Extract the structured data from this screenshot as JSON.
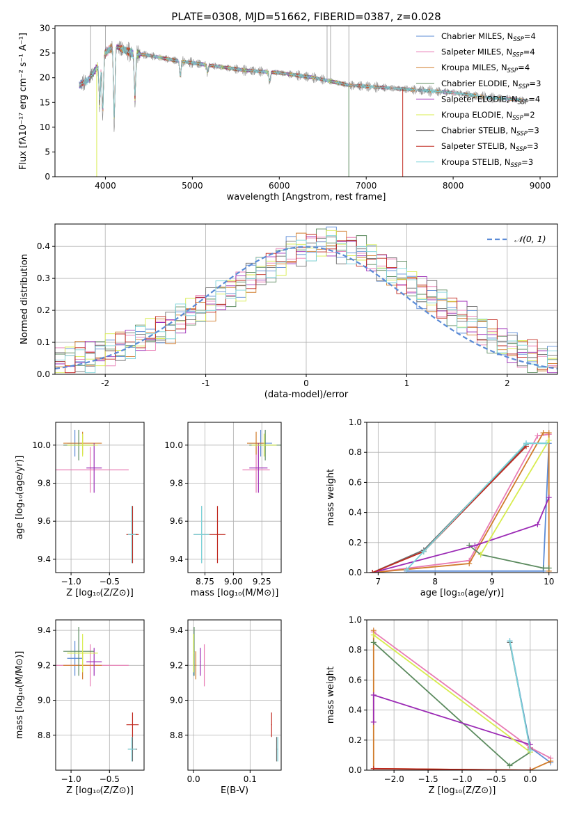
{
  "figure_title": "PLATE=0308, MJD=51662, FIBERID=0387, z=0.028",
  "colors": {
    "chabrier_miles": "#5B8BD6",
    "salpeter_miles": "#E87BB4",
    "kroupa_miles": "#D07B2A",
    "chabrier_elodie": "#5B8A5E",
    "salpeter_elodie": "#9B2AB5",
    "kroupa_elodie": "#D8EC4E",
    "chabrier_stelib": "#6E6E6E",
    "salpeter_stelib": "#C0281E",
    "kroupa_stelib": "#7CD3D9",
    "gaussian": "#5B8BD6"
  },
  "chart_data": [
    {
      "id": "spectrum",
      "type": "line",
      "title": "PLATE=0308, MJD=51662, FIBERID=0387, z=0.028",
      "xlabel": "wavelength [Angstrom, rest frame]",
      "ylabel": "Flux [fλ10⁻¹⁷ erg cm⁻² s⁻¹ A⁻¹]",
      "xlim": [
        3420,
        9200
      ],
      "ylim": [
        0,
        30.5
      ],
      "xticks": [
        4000,
        5000,
        6000,
        7000,
        8000,
        9000
      ],
      "yticks": [
        0,
        5,
        10,
        15,
        20,
        25,
        30
      ],
      "grid": false,
      "legend_position": "top-right",
      "legend": [
        {
          "key": "chabrier_miles",
          "prefix": "Chabrier MILES, N",
          "n": "4"
        },
        {
          "key": "salpeter_miles",
          "prefix": "Salpeter MILES, N",
          "n": "4"
        },
        {
          "key": "kroupa_miles",
          "prefix": "Kroupa MILES, N",
          "n": "4"
        },
        {
          "key": "chabrier_elodie",
          "prefix": "Chabrier ELODIE, N",
          "n": "3"
        },
        {
          "key": "salpeter_elodie",
          "prefix": "Salpeter ELODIE, N",
          "n": "4"
        },
        {
          "key": "kroupa_elodie",
          "prefix": "Kroupa ELODIE, N",
          "n": "2"
        },
        {
          "key": "chabrier_stelib",
          "prefix": "Chabrier STELIB, N",
          "n": "3"
        },
        {
          "key": "salpeter_stelib",
          "prefix": "Salpeter STELIB, N",
          "n": "3"
        },
        {
          "key": "kroupa_stelib",
          "prefix": "Kroupa STELIB, N",
          "n": "3"
        }
      ],
      "legend_sub": "SSP",
      "continuum": [
        [
          3700,
          18.5
        ],
        [
          3800,
          19.5
        ],
        [
          3900,
          22
        ],
        [
          4000,
          25
        ],
        [
          4100,
          26.5
        ],
        [
          4300,
          25
        ],
        [
          4500,
          24.5
        ],
        [
          4800,
          23.5
        ],
        [
          5200,
          22.5
        ],
        [
          5600,
          21.5
        ],
        [
          6000,
          21
        ],
        [
          6400,
          20
        ],
        [
          6800,
          18.5
        ],
        [
          7200,
          18
        ],
        [
          7600,
          17.5
        ],
        [
          8000,
          17
        ],
        [
          8400,
          16
        ],
        [
          8800,
          15.5
        ]
      ],
      "absorption_lines": [
        [
          3934,
          14
        ],
        [
          3969,
          12
        ],
        [
          4102,
          10
        ],
        [
          4340,
          15
        ],
        [
          4861,
          20
        ],
        [
          5175,
          21
        ],
        [
          5890,
          19
        ]
      ],
      "data_spikes": [
        [
          3830,
          30.5
        ],
        [
          4000,
          30.5
        ],
        [
          6550,
          30.5
        ],
        [
          6590,
          30.5
        ],
        [
          6800,
          30.5
        ]
      ],
      "model_dropouts": [
        {
          "key": "kroupa_elodie",
          "x": 3900,
          "y": 0
        },
        {
          "key": "chabrier_elodie",
          "x": 6800,
          "y": 0
        },
        {
          "key": "salpeter_stelib",
          "x": 7420,
          "y": 0
        }
      ],
      "model_ranges": {
        "chabrier_miles": [
          3700,
          8850
        ],
        "salpeter_miles": [
          3700,
          8850
        ],
        "kroupa_miles": [
          3700,
          8850
        ],
        "chabrier_elodie": [
          3700,
          6800
        ],
        "salpeter_elodie": [
          3700,
          6800
        ],
        "kroupa_elodie": [
          3900,
          6800
        ],
        "chabrier_stelib": [
          3700,
          8850
        ],
        "salpeter_stelib": [
          3700,
          7420
        ],
        "kroupa_stelib": [
          3700,
          8850
        ]
      }
    },
    {
      "id": "residuals",
      "type": "histogram",
      "xlabel": "(data-model)/error",
      "ylabel": "Normed distribution",
      "xlim": [
        -2.5,
        2.5
      ],
      "ylim": [
        0,
        0.47
      ],
      "xticks": [
        -2,
        -1,
        0,
        1,
        2
      ],
      "yticks": [
        0.0,
        0.1,
        0.2,
        0.3,
        0.4
      ],
      "grid": true,
      "legend_position": "top-right",
      "legend_label": "𝒩(0, 1)",
      "bin_edges_start": -2.5,
      "bin_width": 0.1,
      "series_keys": [
        "chabrier_miles",
        "salpeter_miles",
        "kroupa_miles",
        "chabrier_elodie",
        "salpeter_elodie",
        "kroupa_elodie",
        "chabrier_stelib",
        "salpeter_stelib",
        "kroupa_stelib"
      ],
      "envelope": [
        0.04,
        0.045,
        0.05,
        0.055,
        0.065,
        0.075,
        0.085,
        0.1,
        0.11,
        0.12,
        0.14,
        0.15,
        0.17,
        0.19,
        0.21,
        0.22,
        0.24,
        0.26,
        0.28,
        0.3,
        0.32,
        0.34,
        0.36,
        0.38,
        0.39,
        0.4,
        0.41,
        0.41,
        0.4,
        0.39,
        0.38,
        0.36,
        0.34,
        0.32,
        0.3,
        0.28,
        0.26,
        0.24,
        0.22,
        0.2,
        0.18,
        0.16,
        0.14,
        0.12,
        0.1,
        0.08,
        0.07,
        0.055,
        0.045,
        0.035
      ]
    },
    {
      "id": "age_vs_Z",
      "type": "scatter",
      "xlabel": "Z [log₁₀(Z/Z⊙)]",
      "ylabel": "age  [log₁₀(age/yr)]",
      "xlim": [
        -1.2,
        -0.05
      ],
      "ylim": [
        9.33,
        10.12
      ],
      "xticks": [
        -1.0,
        -0.5
      ],
      "xticklabels": [
        "−1.0",
        "−0.5"
      ],
      "yticks": [
        9.4,
        9.6,
        9.8,
        10.0
      ],
      "yticklabels": [
        "9.4",
        "9.6",
        "9.8",
        "10.0"
      ],
      "grid": true
    },
    {
      "id": "age_vs_mass",
      "type": "scatter",
      "xlabel": "mass [log₁₀(M/M⊙)]",
      "xlim": [
        8.6,
        9.42
      ],
      "ylim": [
        9.33,
        10.12
      ],
      "xticks": [
        8.75,
        9.0,
        9.25
      ],
      "xticklabels": [
        "8.75",
        "9.00",
        "9.25"
      ],
      "yticks": [
        9.4,
        9.6,
        9.8,
        10.0
      ],
      "yticklabels": [
        "9.4",
        "9.6",
        "9.8",
        "10.0"
      ],
      "grid": true
    },
    {
      "id": "weight_vs_age",
      "type": "line",
      "xlabel": "age  [log₁₀(age/yr)]",
      "ylabel": "mass weight",
      "xlim": [
        6.8,
        10.15
      ],
      "ylim": [
        0,
        1.0
      ],
      "xticks": [
        7,
        8,
        9,
        10
      ],
      "xticklabels": [
        "7",
        "8",
        "9",
        "10"
      ],
      "yticks": [
        0.0,
        0.2,
        0.4,
        0.6,
        0.8,
        1.0
      ],
      "yticklabels": [
        "0.0",
        "0.2",
        "0.4",
        "0.6",
        "0.8",
        "1.0"
      ],
      "grid": true
    },
    {
      "id": "mass_vs_Z",
      "type": "scatter",
      "xlabel": "Z [log₁₀(Z/Z⊙)]",
      "ylabel": "mass [log₁₀(M/M⊙)]",
      "xlim": [
        -1.2,
        -0.05
      ],
      "ylim": [
        8.6,
        9.46
      ],
      "xticks": [
        -1.0,
        -0.5
      ],
      "xticklabels": [
        "−1.0",
        "−0.5"
      ],
      "yticks": [
        8.8,
        9.0,
        9.2,
        9.4
      ],
      "yticklabels": [
        "8.8",
        "9.0",
        "9.2",
        "9.4"
      ],
      "grid": true
    },
    {
      "id": "mass_vs_ebv",
      "type": "scatter",
      "xlabel": "E(B-V)",
      "xlim": [
        -0.01,
        0.155
      ],
      "ylim": [
        8.6,
        9.46
      ],
      "xticks": [
        0.0,
        0.1
      ],
      "xticklabels": [
        "0.0",
        "0.1"
      ],
      "yticks": [
        8.8,
        9.0,
        9.2,
        9.4
      ],
      "yticklabels": [
        "8.8",
        "9.0",
        "9.2",
        "9.4"
      ],
      "grid": true
    },
    {
      "id": "weight_vs_Z",
      "type": "line",
      "xlabel": "Z [log₁₀(Z/Z⊙)]",
      "ylabel": "mass weight",
      "xlim": [
        -2.4,
        0.4
      ],
      "ylim": [
        0,
        1.0
      ],
      "xticks": [
        -2.0,
        -1.5,
        -1.0,
        -0.5,
        0.0
      ],
      "xticklabels": [
        "−2.0",
        "−1.5",
        "−1.0",
        "−0.5",
        "0.0"
      ],
      "yticks": [
        0.0,
        0.2,
        0.4,
        0.6,
        0.8,
        1.0
      ],
      "yticklabels": [
        "0.0",
        "0.2",
        "0.4",
        "0.6",
        "0.8",
        "1.0"
      ],
      "grid": true
    }
  ],
  "fits": [
    {
      "key": "chabrier_miles",
      "age": 10.01,
      "age_err": 0.07,
      "Z": -0.95,
      "Z_err": 0.1,
      "mass": 9.24,
      "mass_err": 0.1,
      "ebv": 0.0,
      "ebv_err": 0.0
    },
    {
      "key": "salpeter_miles",
      "age": 9.87,
      "age_err": 0.12,
      "Z": -0.75,
      "Z_err": 0.5,
      "mass": 9.2,
      "mass_err": 0.12,
      "ebv": 0.019,
      "ebv_err": 0.001
    },
    {
      "key": "kroupa_miles",
      "age": 10.01,
      "age_err": 0.06,
      "Z": -0.85,
      "Z_err": 0.25,
      "mass": 9.2,
      "mass_err": 0.08,
      "ebv": 0.004,
      "ebv_err": 0.001
    },
    {
      "key": "chabrier_elodie",
      "age": 10.0,
      "age_err": 0.08,
      "Z": -0.9,
      "Z_err": 0.2,
      "mass": 9.28,
      "mass_err": 0.14,
      "ebv": 0.001,
      "ebv_err": 0.0
    },
    {
      "key": "salpeter_elodie",
      "age": 9.88,
      "age_err": 0.13,
      "Z": -0.7,
      "Z_err": 0.1,
      "mass": 9.22,
      "mass_err": 0.08,
      "ebv": 0.012,
      "ebv_err": 0.0
    },
    {
      "key": "kroupa_elodie",
      "age": 10.0,
      "age_err": 0.06,
      "Z": -0.85,
      "Z_err": 0.2,
      "mass": 9.27,
      "mass_err": 0.11,
      "ebv": 0.0,
      "ebv_err": 0.0
    },
    {
      "key": "chabrier_stelib",
      "age": 9.53,
      "age_err": 0.15,
      "Z": -0.2,
      "Z_err": 0.06,
      "mass": 8.72,
      "mass_err": 0.07,
      "ebv": 0.147,
      "ebv_err": 0.0
    },
    {
      "key": "salpeter_stelib",
      "age": 9.53,
      "age_err": 0.15,
      "Z": -0.2,
      "Z_err": 0.08,
      "mass": 8.86,
      "mass_err": 0.07,
      "ebv": 0.138,
      "ebv_err": 0.0
    },
    {
      "key": "kroupa_stelib",
      "age": 9.53,
      "age_err": 0.15,
      "Z": -0.21,
      "Z_err": 0.05,
      "mass": 8.72,
      "mass_err": 0.07,
      "ebv": 0.149,
      "ebv_err": 0.0
    }
  ],
  "weights_age": [
    {
      "key": "chabrier_miles",
      "pts": [
        [
          7.5,
          0.01
        ],
        [
          9.9,
          0.01
        ],
        [
          10.0,
          0.86
        ],
        [
          9.6,
          0.86
        ]
      ]
    },
    {
      "key": "salpeter_miles",
      "pts": [
        [
          6.9,
          0.0
        ],
        [
          8.6,
          0.08
        ],
        [
          9.8,
          0.91
        ],
        [
          10.0,
          0.92
        ]
      ]
    },
    {
      "key": "kroupa_miles",
      "pts": [
        [
          6.9,
          0.0
        ],
        [
          8.6,
          0.06
        ],
        [
          9.9,
          0.93
        ],
        [
          10.0,
          0.93
        ],
        [
          10.0,
          0.01
        ]
      ]
    },
    {
      "key": "chabrier_elodie",
      "pts": [
        [
          8.6,
          0.18
        ],
        [
          8.8,
          0.12
        ],
        [
          9.9,
          0.03
        ],
        [
          10.0,
          0.03
        ]
      ]
    },
    {
      "key": "salpeter_elodie",
      "pts": [
        [
          6.9,
          0.0
        ],
        [
          8.7,
          0.18
        ],
        [
          9.8,
          0.32
        ],
        [
          10.0,
          0.5
        ]
      ]
    },
    {
      "key": "kroupa_elodie",
      "pts": [
        [
          8.8,
          0.12
        ],
        [
          10.0,
          0.88
        ]
      ]
    },
    {
      "key": "chabrier_stelib",
      "pts": [
        [
          6.9,
          0.0
        ],
        [
          7.8,
          0.15
        ],
        [
          9.6,
          0.85
        ]
      ]
    },
    {
      "key": "salpeter_stelib",
      "pts": [
        [
          6.9,
          0.0
        ],
        [
          7.8,
          0.14
        ],
        [
          9.6,
          0.84
        ]
      ]
    },
    {
      "key": "kroupa_stelib",
      "pts": [
        [
          7.5,
          0.02
        ],
        [
          7.8,
          0.14
        ],
        [
          9.6,
          0.86
        ],
        [
          9.95,
          0.86
        ]
      ]
    }
  ],
  "weights_Z": [
    {
      "key": "chabrier_miles",
      "pts": [
        [
          -0.3,
          0.86
        ],
        [
          0.0,
          0.15
        ],
        [
          0.3,
          0.05
        ]
      ]
    },
    {
      "key": "salpeter_miles",
      "pts": [
        [
          -2.3,
          0.92
        ],
        [
          0.0,
          0.15
        ],
        [
          0.3,
          0.08
        ]
      ]
    },
    {
      "key": "kroupa_miles",
      "pts": [
        [
          -2.3,
          0.93
        ],
        [
          -2.3,
          0.01
        ],
        [
          0.0,
          0.0
        ],
        [
          0.3,
          0.06
        ]
      ]
    },
    {
      "key": "chabrier_elodie",
      "pts": [
        [
          -2.3,
          0.85
        ],
        [
          -0.3,
          0.03
        ],
        [
          0.0,
          0.12
        ]
      ]
    },
    {
      "key": "salpeter_elodie",
      "pts": [
        [
          -2.3,
          0.32
        ],
        [
          -2.3,
          0.5
        ],
        [
          0.0,
          0.17
        ]
      ]
    },
    {
      "key": "kroupa_elodie",
      "pts": [
        [
          -2.3,
          0.9
        ],
        [
          0.0,
          0.12
        ]
      ]
    },
    {
      "key": "chabrier_stelib",
      "pts": [
        [
          -0.3,
          0.85
        ],
        [
          0.0,
          0.14
        ]
      ]
    },
    {
      "key": "salpeter_stelib",
      "pts": [
        [
          -2.3,
          0.01
        ],
        [
          0.0,
          0.0
        ]
      ]
    },
    {
      "key": "kroupa_stelib",
      "pts": [
        [
          -0.3,
          0.86
        ],
        [
          0.0,
          0.13
        ]
      ]
    }
  ]
}
